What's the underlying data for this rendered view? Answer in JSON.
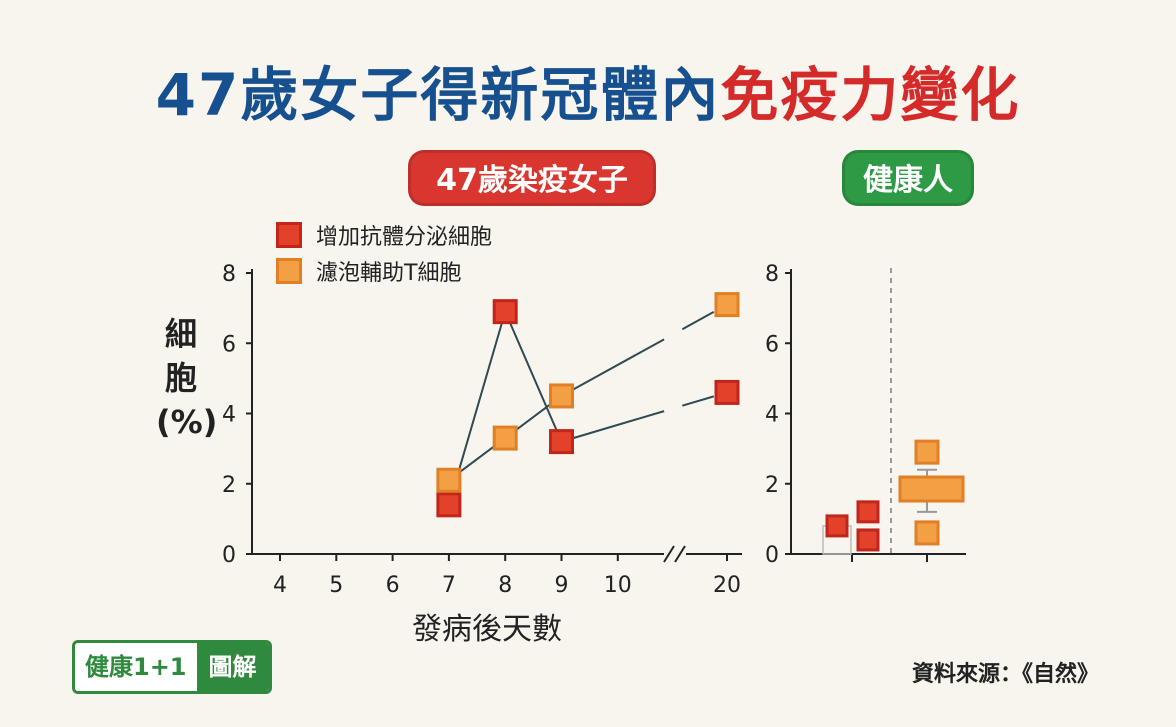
{
  "title": {
    "part1": "47歲女子得新冠體內",
    "part2": "免疫力變化"
  },
  "groups": {
    "infected": "47歲染疫女子",
    "healthy": "健康人"
  },
  "colors": {
    "title_blue": "#17508f",
    "title_red": "#d42a2a",
    "series_red": "#e4412b",
    "series_orange": "#f3a044",
    "pill_red": "#d8362f",
    "pill_green": "#2f9a45",
    "line": "#2f4a52"
  },
  "ylabel_chars": [
    "細",
    "胞",
    "(%)"
  ],
  "xlabel": "發病後天數",
  "logo": {
    "left": "健康1+1",
    "right": "圖解"
  },
  "source": "資料來源：《自然》",
  "chart_data": [
    {
      "type": "line",
      "title": "47歲染疫女子",
      "xlabel": "發病後天數",
      "ylabel": "細胞(%)",
      "xticks": [
        "4",
        "5",
        "6",
        "7",
        "8",
        "9",
        "10",
        "20"
      ],
      "yticks": [
        "0",
        "2",
        "4",
        "6",
        "8"
      ],
      "ylim": [
        0,
        8
      ],
      "axis_break": "between 10 and 20",
      "legend": {
        "position": "top-left"
      },
      "series": [
        {
          "name": "增加抗體分泌細胞",
          "color": "#e4412b",
          "x": [
            7,
            8,
            9,
            20
          ],
          "y": [
            1.4,
            6.9,
            3.2,
            4.6
          ]
        },
        {
          "name": "濾泡輔助T細胞",
          "color": "#f3a044",
          "x": [
            7,
            8,
            9,
            20
          ],
          "y": [
            2.1,
            3.3,
            4.5,
            7.1
          ]
        }
      ]
    },
    {
      "type": "scatter",
      "title": "健康人",
      "yticks": [
        "0",
        "2",
        "4",
        "6",
        "8"
      ],
      "ylim": [
        0,
        8
      ],
      "series": [
        {
          "name": "增加抗體分泌細胞",
          "color": "#e4412b",
          "y": [
            0.8,
            1.2,
            0.4
          ]
        },
        {
          "name": "濾泡輔助T細胞",
          "color": "#f3a044",
          "y": [
            2.9,
            1.85,
            0.6
          ]
        }
      ]
    }
  ]
}
